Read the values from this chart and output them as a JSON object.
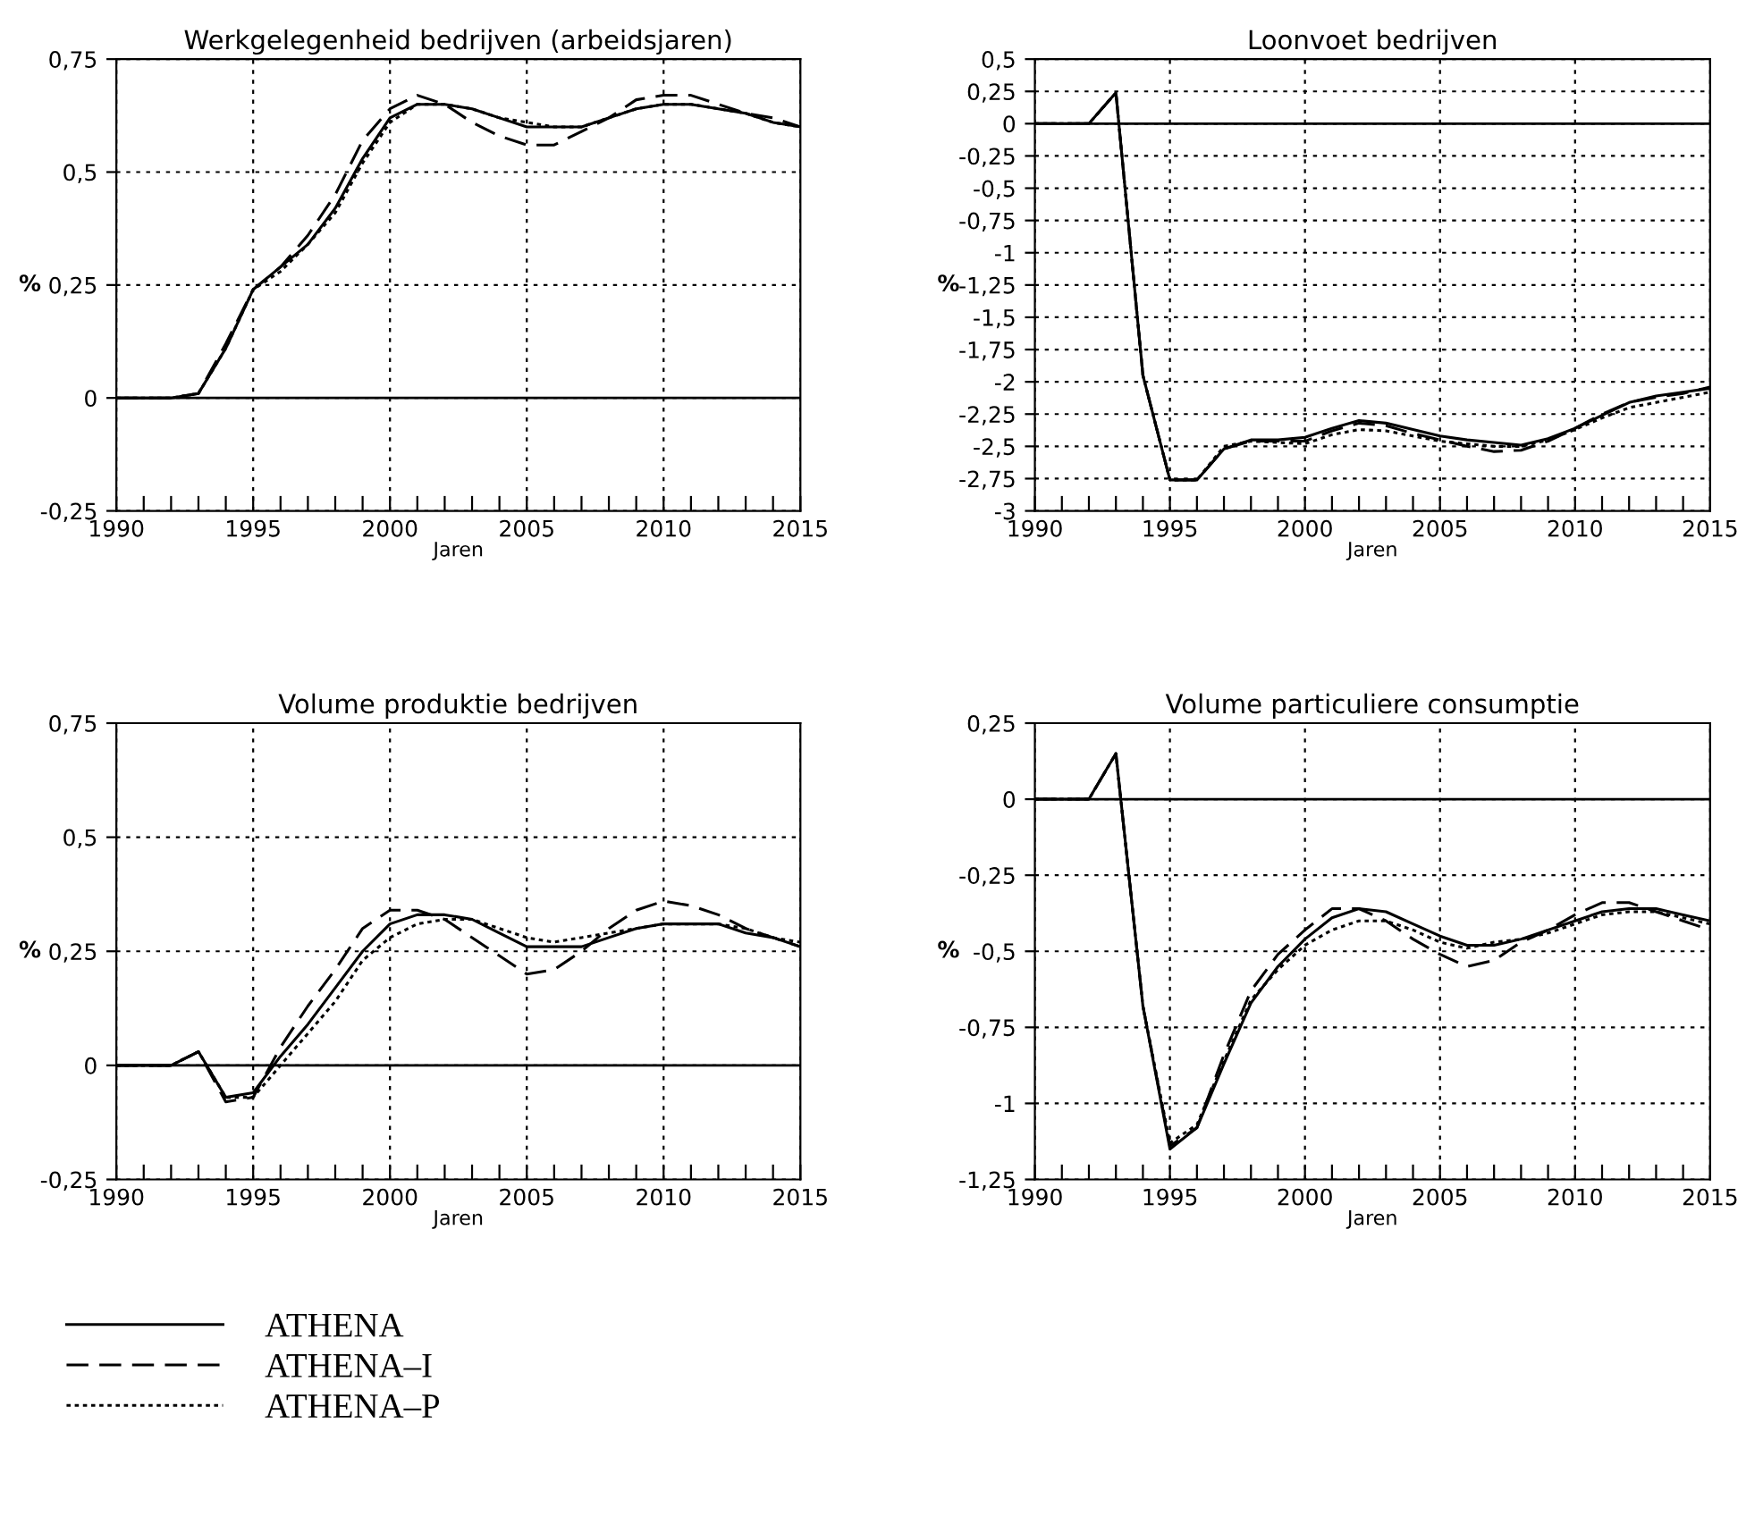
{
  "chart_data": [
    {
      "type": "line",
      "title": "Werkgelegenheid bedrijven (arbeidsjaren)",
      "xlabel": "Jaren",
      "ylabel": "%",
      "x": [
        1990,
        1991,
        1992,
        1993,
        1994,
        1995,
        1996,
        1997,
        1998,
        1999,
        2000,
        2001,
        2002,
        2003,
        2004,
        2005,
        2006,
        2007,
        2008,
        2009,
        2010,
        2011,
        2012,
        2013,
        2014,
        2015
      ],
      "series": [
        {
          "name": "ATHENA",
          "color": "#000000",
          "line_style": "solid",
          "values": [
            0,
            0,
            0,
            0.01,
            0.11,
            0.24,
            0.29,
            0.34,
            0.42,
            0.53,
            0.62,
            0.65,
            0.65,
            0.64,
            0.62,
            0.6,
            0.6,
            0.6,
            0.62,
            0.64,
            0.65,
            0.65,
            0.64,
            0.63,
            0.61,
            0.6
          ]
        },
        {
          "name": "ATHENA–I",
          "color": "#000000",
          "line_style": "dashed",
          "values": [
            0,
            0,
            0,
            0.01,
            0.12,
            0.24,
            0.29,
            0.36,
            0.45,
            0.57,
            0.64,
            0.67,
            0.65,
            0.61,
            0.58,
            0.56,
            0.56,
            0.59,
            0.62,
            0.66,
            0.67,
            0.67,
            0.65,
            0.63,
            0.62,
            0.6
          ]
        },
        {
          "name": "ATHENA–P",
          "color": "#000000",
          "line_style": "dotted",
          "values": [
            0,
            0,
            0,
            0.01,
            0.11,
            0.24,
            0.28,
            0.34,
            0.41,
            0.52,
            0.61,
            0.65,
            0.65,
            0.64,
            0.62,
            0.61,
            0.6,
            0.6,
            0.62,
            0.64,
            0.65,
            0.65,
            0.64,
            0.63,
            0.61,
            0.6
          ]
        }
      ],
      "xlim": [
        1990,
        2015
      ],
      "xticks": [
        1990,
        {
          "value": 1991,
          "label": null
        },
        {
          "value": 1992,
          "label": null
        },
        {
          "value": 1993,
          "label": null
        },
        {
          "value": 1994,
          "label": null
        },
        1995,
        {
          "value": 1996,
          "label": null
        },
        {
          "value": 1997,
          "label": null
        },
        {
          "value": 1998,
          "label": null
        },
        {
          "value": 1999,
          "label": null
        },
        2000,
        {
          "value": 2001,
          "label": null
        },
        {
          "value": 2002,
          "label": null
        },
        {
          "value": 2003,
          "label": null
        },
        {
          "value": 2004,
          "label": null
        },
        2005,
        {
          "value": 2006,
          "label": null
        },
        {
          "value": 2007,
          "label": null
        },
        {
          "value": 2008,
          "label": null
        },
        {
          "value": 2009,
          "label": null
        },
        2010,
        {
          "value": 2011,
          "label": null
        },
        {
          "value": 2012,
          "label": null
        },
        {
          "value": 2013,
          "label": null
        },
        {
          "value": 2014,
          "label": null
        },
        2015
      ],
      "ylim": [
        -0.25,
        0.75
      ],
      "yticks": [
        {
          "value": -0.25,
          "label": "-0,25"
        },
        0,
        {
          "value": 0.25,
          "label": "0,25"
        },
        {
          "value": 0.5,
          "label": "0,5"
        },
        {
          "value": 0.75,
          "label": "0,75"
        }
      ],
      "ref_lines": [
        {
          "axis": "y",
          "value": 0,
          "color": "#000000",
          "line_style": "solid"
        }
      ],
      "grid": true,
      "legend": "bottom"
    },
    {
      "type": "line",
      "title": "Loonvoet bedrijven",
      "xlabel": "Jaren",
      "ylabel": "%",
      "x": [
        1990,
        1991,
        1992,
        1993,
        1994,
        1995,
        1996,
        1997,
        1998,
        1999,
        2000,
        2001,
        2002,
        2003,
        2004,
        2005,
        2006,
        2007,
        2008,
        2009,
        2010,
        2011,
        2012,
        2013,
        2014,
        2015
      ],
      "series": [
        {
          "color": "#000000",
          "line_style": "solid",
          "values": [
            0,
            0,
            0,
            0.24,
            -1.95,
            -2.76,
            -2.76,
            -2.52,
            -2.45,
            -2.45,
            -2.43,
            -2.36,
            -2.3,
            -2.32,
            -2.37,
            -2.42,
            -2.45,
            -2.47,
            -2.49,
            -2.44,
            -2.36,
            -2.26,
            -2.16,
            -2.11,
            -2.08,
            -2.05
          ]
        },
        {
          "color": "#000000",
          "line_style": "dashed",
          "values": [
            0,
            0,
            0,
            0.24,
            -1.95,
            -2.76,
            -2.76,
            -2.52,
            -2.46,
            -2.46,
            -2.46,
            -2.38,
            -2.32,
            -2.34,
            -2.4,
            -2.45,
            -2.5,
            -2.54,
            -2.53,
            -2.46,
            -2.36,
            -2.25,
            -2.16,
            -2.12,
            -2.09,
            -2.04
          ]
        },
        {
          "color": "#000000",
          "line_style": "dotted",
          "values": [
            0,
            0,
            0,
            0.24,
            -1.95,
            -2.76,
            -2.76,
            -2.5,
            -2.46,
            -2.47,
            -2.48,
            -2.41,
            -2.37,
            -2.38,
            -2.42,
            -2.46,
            -2.48,
            -2.5,
            -2.5,
            -2.45,
            -2.37,
            -2.28,
            -2.2,
            -2.16,
            -2.12,
            -2.08
          ]
        }
      ],
      "xlim": [
        1990,
        2015
      ],
      "xticks": [
        1990,
        {
          "value": 1991,
          "label": null
        },
        {
          "value": 1992,
          "label": null
        },
        {
          "value": 1993,
          "label": null
        },
        {
          "value": 1994,
          "label": null
        },
        1995,
        {
          "value": 1996,
          "label": null
        },
        {
          "value": 1997,
          "label": null
        },
        {
          "value": 1998,
          "label": null
        },
        {
          "value": 1999,
          "label": null
        },
        2000,
        {
          "value": 2001,
          "label": null
        },
        {
          "value": 2002,
          "label": null
        },
        {
          "value": 2003,
          "label": null
        },
        {
          "value": 2004,
          "label": null
        },
        2005,
        {
          "value": 2006,
          "label": null
        },
        {
          "value": 2007,
          "label": null
        },
        {
          "value": 2008,
          "label": null
        },
        {
          "value": 2009,
          "label": null
        },
        2010,
        {
          "value": 2011,
          "label": null
        },
        {
          "value": 2012,
          "label": null
        },
        {
          "value": 2013,
          "label": null
        },
        {
          "value": 2014,
          "label": null
        },
        2015
      ],
      "ylim": [
        -3,
        0.5
      ],
      "yticks": [
        -3,
        {
          "value": -2.75,
          "label": "-2,75"
        },
        {
          "value": -2.5,
          "label": "-2,5"
        },
        {
          "value": -2.25,
          "label": "-2,25"
        },
        -2,
        {
          "value": -1.75,
          "label": "-1,75"
        },
        {
          "value": -1.5,
          "label": "-1,5"
        },
        {
          "value": -1.25,
          "label": "-1,25"
        },
        -1,
        {
          "value": -0.75,
          "label": "-0,75"
        },
        {
          "value": -0.5,
          "label": "-0,5"
        },
        {
          "value": -0.25,
          "label": "-0,25"
        },
        0,
        {
          "value": 0.25,
          "label": "0,25"
        },
        {
          "value": 0.5,
          "label": "0,5"
        }
      ],
      "ref_lines": [
        {
          "axis": "y",
          "value": 0,
          "color": "#000000",
          "line_style": "solid"
        }
      ],
      "grid": true
    },
    {
      "type": "line",
      "title": "Volume produktie bedrijven",
      "xlabel": "Jaren",
      "ylabel": "%",
      "x": [
        1990,
        1991,
        1992,
        1993,
        1994,
        1995,
        1996,
        1997,
        1998,
        1999,
        2000,
        2001,
        2002,
        2003,
        2004,
        2005,
        2006,
        2007,
        2008,
        2009,
        2010,
        2011,
        2012,
        2013,
        2014,
        2015
      ],
      "series": [
        {
          "color": "#000000",
          "line_style": "solid",
          "values": [
            0,
            0,
            0,
            0.03,
            -0.07,
            -0.06,
            0.02,
            0.09,
            0.17,
            0.25,
            0.31,
            0.33,
            0.33,
            0.32,
            0.29,
            0.26,
            0.26,
            0.26,
            0.28,
            0.3,
            0.31,
            0.31,
            0.31,
            0.29,
            0.28,
            0.26
          ]
        },
        {
          "color": "#000000",
          "line_style": "dashed",
          "values": [
            0,
            0,
            0,
            0.03,
            -0.08,
            -0.07,
            0.04,
            0.13,
            0.21,
            0.3,
            0.34,
            0.34,
            0.32,
            0.28,
            0.24,
            0.2,
            0.21,
            0.25,
            0.3,
            0.34,
            0.36,
            0.35,
            0.33,
            0.3,
            0.28,
            0.26
          ]
        },
        {
          "color": "#000000",
          "line_style": "dotted",
          "values": [
            0,
            0,
            0,
            0.03,
            -0.07,
            -0.07,
            0.0,
            0.07,
            0.14,
            0.23,
            0.28,
            0.31,
            0.32,
            0.32,
            0.3,
            0.28,
            0.27,
            0.28,
            0.29,
            0.3,
            0.31,
            0.31,
            0.31,
            0.3,
            0.28,
            0.27
          ]
        }
      ],
      "xlim": [
        1990,
        2015
      ],
      "xticks": [
        1990,
        {
          "value": 1991,
          "label": null
        },
        {
          "value": 1992,
          "label": null
        },
        {
          "value": 1993,
          "label": null
        },
        {
          "value": 1994,
          "label": null
        },
        1995,
        {
          "value": 1996,
          "label": null
        },
        {
          "value": 1997,
          "label": null
        },
        {
          "value": 1998,
          "label": null
        },
        {
          "value": 1999,
          "label": null
        },
        2000,
        {
          "value": 2001,
          "label": null
        },
        {
          "value": 2002,
          "label": null
        },
        {
          "value": 2003,
          "label": null
        },
        {
          "value": 2004,
          "label": null
        },
        2005,
        {
          "value": 2006,
          "label": null
        },
        {
          "value": 2007,
          "label": null
        },
        {
          "value": 2008,
          "label": null
        },
        {
          "value": 2009,
          "label": null
        },
        2010,
        {
          "value": 2011,
          "label": null
        },
        {
          "value": 2012,
          "label": null
        },
        {
          "value": 2013,
          "label": null
        },
        {
          "value": 2014,
          "label": null
        },
        2015
      ],
      "ylim": [
        -0.25,
        0.75
      ],
      "yticks": [
        {
          "value": -0.25,
          "label": "-0,25"
        },
        0,
        {
          "value": 0.25,
          "label": "0,25"
        },
        {
          "value": 0.5,
          "label": "0,5"
        },
        {
          "value": 0.75,
          "label": "0,75"
        }
      ],
      "ref_lines": [
        {
          "axis": "y",
          "value": 0,
          "color": "#000000",
          "line_style": "solid"
        }
      ],
      "grid": true
    },
    {
      "type": "line",
      "title": "Volume particuliere consumptie",
      "xlabel": "Jaren",
      "ylabel": "%",
      "x": [
        1990,
        1991,
        1992,
        1993,
        1994,
        1995,
        1996,
        1997,
        1998,
        1999,
        2000,
        2001,
        2002,
        2003,
        2004,
        2005,
        2006,
        2007,
        2008,
        2009,
        2010,
        2011,
        2012,
        2013,
        2014,
        2015
      ],
      "series": [
        {
          "color": "#000000",
          "line_style": "solid",
          "values": [
            0,
            0,
            0,
            0.15,
            -0.68,
            -1.15,
            -1.08,
            -0.87,
            -0.67,
            -0.55,
            -0.46,
            -0.39,
            -0.36,
            -0.37,
            -0.41,
            -0.45,
            -0.48,
            -0.48,
            -0.46,
            -0.43,
            -0.4,
            -0.37,
            -0.36,
            -0.36,
            -0.38,
            -0.4
          ]
        },
        {
          "color": "#000000",
          "line_style": "dashed",
          "values": [
            0,
            0,
            0,
            0.15,
            -0.68,
            -1.14,
            -1.08,
            -0.84,
            -0.63,
            -0.51,
            -0.43,
            -0.36,
            -0.36,
            -0.4,
            -0.46,
            -0.51,
            -0.55,
            -0.53,
            -0.47,
            -0.43,
            -0.38,
            -0.34,
            -0.34,
            -0.37,
            -0.4,
            -0.43
          ]
        },
        {
          "color": "#000000",
          "line_style": "dotted",
          "values": [
            0,
            0,
            0,
            0.15,
            -0.68,
            -1.13,
            -1.07,
            -0.86,
            -0.66,
            -0.56,
            -0.48,
            -0.43,
            -0.4,
            -0.4,
            -0.43,
            -0.47,
            -0.49,
            -0.47,
            -0.46,
            -0.44,
            -0.41,
            -0.38,
            -0.37,
            -0.37,
            -0.39,
            -0.41
          ]
        }
      ],
      "xlim": [
        1990,
        2015
      ],
      "xticks": [
        1990,
        {
          "value": 1991,
          "label": null
        },
        {
          "value": 1992,
          "label": null
        },
        {
          "value": 1993,
          "label": null
        },
        {
          "value": 1994,
          "label": null
        },
        1995,
        {
          "value": 1996,
          "label": null
        },
        {
          "value": 1997,
          "label": null
        },
        {
          "value": 1998,
          "label": null
        },
        {
          "value": 1999,
          "label": null
        },
        2000,
        {
          "value": 2001,
          "label": null
        },
        {
          "value": 2002,
          "label": null
        },
        {
          "value": 2003,
          "label": null
        },
        {
          "value": 2004,
          "label": null
        },
        2005,
        {
          "value": 2006,
          "label": null
        },
        {
          "value": 2007,
          "label": null
        },
        {
          "value": 2008,
          "label": null
        },
        {
          "value": 2009,
          "label": null
        },
        2010,
        {
          "value": 2011,
          "label": null
        },
        {
          "value": 2012,
          "label": null
        },
        {
          "value": 2013,
          "label": null
        },
        {
          "value": 2014,
          "label": null
        },
        2015
      ],
      "ylim": [
        -1.25,
        0.25
      ],
      "yticks": [
        {
          "value": -1.25,
          "label": "-1,25"
        },
        -1,
        {
          "value": -0.75,
          "label": "-0,75"
        },
        {
          "value": -0.5,
          "label": "-0,5"
        },
        {
          "value": -0.25,
          "label": "-0,25"
        },
        0,
        {
          "value": 0.25,
          "label": "0,25"
        }
      ],
      "ref_lines": [
        {
          "axis": "y",
          "value": 0,
          "color": "#000000",
          "line_style": "solid"
        }
      ],
      "grid": true
    }
  ]
}
